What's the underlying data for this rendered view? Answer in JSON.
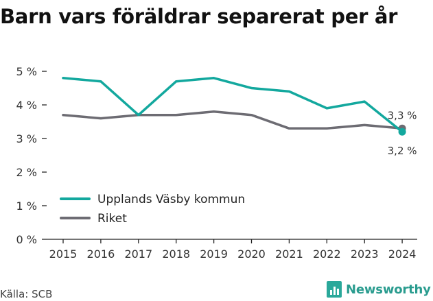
{
  "title": "Barn vars föräldrar separerat per år",
  "source": "Källa: SCB",
  "brand": {
    "name": "Newsworthy",
    "icon": "bar-chart-icon",
    "color": "#2a9c8f"
  },
  "chart_data": {
    "type": "line",
    "title": "Barn vars föräldrar separerat per år",
    "x": [
      "2015",
      "2016",
      "2017",
      "2018",
      "2019",
      "2020",
      "2021",
      "2022",
      "2023",
      "2024"
    ],
    "ylim": [
      0,
      5
    ],
    "yticks": [
      "0 %",
      "1 %",
      "2 %",
      "3 %",
      "4 %",
      "5 %"
    ],
    "grid": false,
    "legend_position": "bottom-left",
    "series": [
      {
        "name": "Upplands Väsby kommun",
        "color": "#13a89e",
        "values": [
          4.8,
          4.7,
          3.7,
          4.7,
          4.8,
          4.5,
          4.4,
          3.9,
          4.1,
          3.2
        ]
      },
      {
        "name": "Riket",
        "color": "#6d6c73",
        "values": [
          3.7,
          3.6,
          3.7,
          3.7,
          3.8,
          3.7,
          3.3,
          3.3,
          3.4,
          3.3
        ]
      }
    ],
    "annotations": [
      {
        "label": "3,3 %",
        "series": "Riket",
        "x": "2024"
      },
      {
        "label": "3,2 %",
        "series": "Upplands Väsby kommun",
        "x": "2024"
      }
    ]
  }
}
